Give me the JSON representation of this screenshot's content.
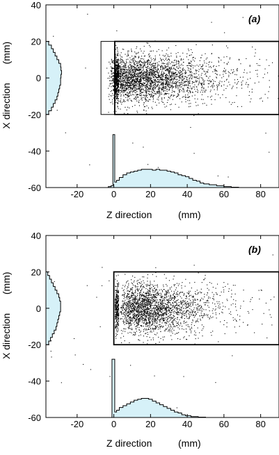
{
  "figure": {
    "colors": {
      "hist_fill": "#d6f1f8",
      "stroke": "#000000",
      "background": "#ffffff"
    }
  },
  "chart_data": [
    {
      "type": "scatter",
      "panel_label": "(a)",
      "xlabel": "Z direction",
      "xunit": "(mm)",
      "ylabel": "X direction",
      "yunit": "(mm)",
      "xlim": [
        -37,
        90
      ],
      "ylim": [
        -60,
        40
      ],
      "xticks": [
        -20,
        0,
        20,
        40,
        60,
        80
      ],
      "yticks": [
        -60,
        -40,
        -20,
        0,
        20,
        40
      ],
      "xtick_labels": [
        "-20",
        "0",
        "20",
        "40",
        "60",
        "80"
      ],
      "ytick_labels": [
        "-60",
        "-40",
        "-20",
        "0",
        "20",
        "40"
      ],
      "boxes": [
        {
          "z": [
            -7,
            0.5
          ],
          "x": [
            -20,
            20
          ]
        },
        {
          "z": [
            0.5,
            90
          ],
          "x": [
            -20,
            20
          ]
        }
      ],
      "scatter_distribution": {
        "points_shown": 3200,
        "z_range": [
          -7,
          90
        ],
        "z_mode": 15,
        "x_mean": 0,
        "x_std": 6.5,
        "x_range": [
          -20,
          20
        ]
      },
      "z_histogram": {
        "baseline": -60,
        "bins": [
          {
            "z": -2,
            "v": -59.5
          },
          {
            "z": -1,
            "v": -59
          },
          {
            "z": 0,
            "v": -31
          },
          {
            "z": 1,
            "v": -57
          },
          {
            "z": 2,
            "v": -56
          },
          {
            "z": 4,
            "v": -54.5
          },
          {
            "z": 6,
            "v": -53
          },
          {
            "z": 8,
            "v": -52
          },
          {
            "z": 10,
            "v": -51.5
          },
          {
            "z": 12,
            "v": -51
          },
          {
            "z": 14,
            "v": -50.5
          },
          {
            "z": 16,
            "v": -50
          },
          {
            "z": 18,
            "v": -50
          },
          {
            "z": 20,
            "v": -50
          },
          {
            "z": 22,
            "v": -50.5
          },
          {
            "z": 24,
            "v": -50
          },
          {
            "z": 26,
            "v": -50.5
          },
          {
            "z": 28,
            "v": -50.5
          },
          {
            "z": 30,
            "v": -51
          },
          {
            "z": 32,
            "v": -51.5
          },
          {
            "z": 34,
            "v": -52
          },
          {
            "z": 36,
            "v": -53
          },
          {
            "z": 38,
            "v": -53.5
          },
          {
            "z": 40,
            "v": -54
          },
          {
            "z": 42,
            "v": -55
          },
          {
            "z": 44,
            "v": -56
          },
          {
            "z": 46,
            "v": -56.5
          },
          {
            "z": 48,
            "v": -57.5
          },
          {
            "z": 50,
            "v": -58
          },
          {
            "z": 54,
            "v": -58.5
          },
          {
            "z": 58,
            "v": -59
          },
          {
            "z": 62,
            "v": -59.5
          },
          {
            "z": 66,
            "v": -59.8
          }
        ]
      },
      "x_histogram": {
        "z_baseline": -37,
        "bins": [
          {
            "x": -19,
            "v": -35.5
          },
          {
            "x": -17,
            "v": -34
          },
          {
            "x": -15,
            "v": -33
          },
          {
            "x": -13,
            "v": -32
          },
          {
            "x": -11,
            "v": -31
          },
          {
            "x": -9,
            "v": -30.5
          },
          {
            "x": -7,
            "v": -30
          },
          {
            "x": -5,
            "v": -29.5
          },
          {
            "x": -3,
            "v": -29
          },
          {
            "x": -1,
            "v": -29
          },
          {
            "x": 1,
            "v": -28.8
          },
          {
            "x": 3,
            "v": -28.5
          },
          {
            "x": 5,
            "v": -28.8
          },
          {
            "x": 7,
            "v": -29
          },
          {
            "x": 9,
            "v": -30
          },
          {
            "x": 11,
            "v": -31
          },
          {
            "x": 13,
            "v": -32
          },
          {
            "x": 15,
            "v": -33
          },
          {
            "x": 17,
            "v": -34
          },
          {
            "x": 19,
            "v": -35.5
          }
        ]
      }
    },
    {
      "type": "scatter",
      "panel_label": "(b)",
      "xlabel": "Z direction",
      "xunit": "(mm)",
      "ylabel": "X direction",
      "yunit": "(mm)",
      "xlim": [
        -37,
        90
      ],
      "ylim": [
        -60,
        40
      ],
      "xticks": [
        -20,
        0,
        20,
        40,
        60,
        80
      ],
      "yticks": [
        -60,
        -40,
        -20,
        0,
        20,
        40
      ],
      "xtick_labels": [
        "-20",
        "0",
        "20",
        "40",
        "60",
        "80"
      ],
      "ytick_labels": [
        "-60",
        "-40",
        "-20",
        "0",
        "20",
        "40"
      ],
      "boxes": [
        {
          "z": [
            0,
            90
          ],
          "x": [
            -20,
            20
          ]
        }
      ],
      "scatter_distribution": {
        "points_shown": 2600,
        "z_range": [
          0,
          90
        ],
        "z_mode": 12,
        "x_mean": 0,
        "x_std": 7,
        "x_range": [
          -20,
          20
        ]
      },
      "z_histogram": {
        "baseline": -60,
        "bins": [
          {
            "z": 0,
            "v": -28
          },
          {
            "z": 1,
            "v": -57
          },
          {
            "z": 2,
            "v": -56
          },
          {
            "z": 4,
            "v": -54.5
          },
          {
            "z": 6,
            "v": -53.5
          },
          {
            "z": 8,
            "v": -52.5
          },
          {
            "z": 10,
            "v": -51.5
          },
          {
            "z": 12,
            "v": -50.5
          },
          {
            "z": 14,
            "v": -50
          },
          {
            "z": 16,
            "v": -49.5
          },
          {
            "z": 18,
            "v": -49.5
          },
          {
            "z": 20,
            "v": -50
          },
          {
            "z": 22,
            "v": -51
          },
          {
            "z": 24,
            "v": -52
          },
          {
            "z": 26,
            "v": -53
          },
          {
            "z": 28,
            "v": -54
          },
          {
            "z": 30,
            "v": -55
          },
          {
            "z": 32,
            "v": -56
          },
          {
            "z": 34,
            "v": -57
          },
          {
            "z": 36,
            "v": -57.5
          },
          {
            "z": 38,
            "v": -58.5
          },
          {
            "z": 40,
            "v": -59
          },
          {
            "z": 44,
            "v": -59.5
          },
          {
            "z": 48,
            "v": -59.8
          }
        ]
      },
      "x_histogram": {
        "z_baseline": -37,
        "bins": [
          {
            "x": -19,
            "v": -35.5
          },
          {
            "x": -17,
            "v": -34.5
          },
          {
            "x": -15,
            "v": -33.5
          },
          {
            "x": -13,
            "v": -32.5
          },
          {
            "x": -11,
            "v": -31.5
          },
          {
            "x": -9,
            "v": -31
          },
          {
            "x": -7,
            "v": -30.5
          },
          {
            "x": -5,
            "v": -30
          },
          {
            "x": -3,
            "v": -29.5
          },
          {
            "x": -1,
            "v": -29
          },
          {
            "x": 1,
            "v": -29
          },
          {
            "x": 3,
            "v": -29
          },
          {
            "x": 5,
            "v": -29.5
          },
          {
            "x": 7,
            "v": -30
          },
          {
            "x": 9,
            "v": -31
          },
          {
            "x": 11,
            "v": -32
          },
          {
            "x": 13,
            "v": -33
          },
          {
            "x": 15,
            "v": -34
          },
          {
            "x": 17,
            "v": -35
          },
          {
            "x": 19,
            "v": -36
          }
        ]
      }
    }
  ]
}
